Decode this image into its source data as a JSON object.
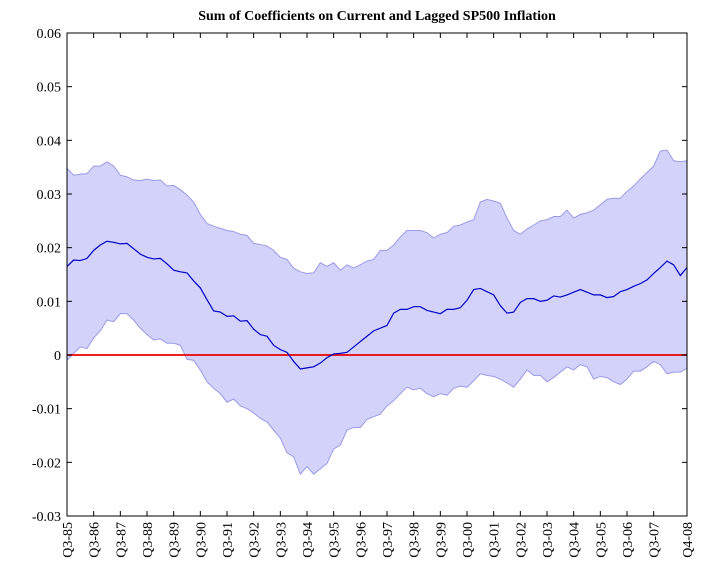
{
  "chart_data": {
    "type": "band-line",
    "title": "Sum of Coefficients on Current and Lagged SP500 Inflation",
    "categories": [
      "Q3-85",
      null,
      null,
      null,
      "Q3-86",
      null,
      null,
      null,
      "Q3-87",
      null,
      null,
      null,
      "Q3-88",
      null,
      null,
      null,
      "Q3-89",
      null,
      null,
      null,
      "Q3-90",
      null,
      null,
      null,
      "Q3-91",
      null,
      null,
      null,
      "Q3-92",
      null,
      null,
      null,
      "Q3-93",
      null,
      null,
      null,
      "Q3-94",
      null,
      null,
      null,
      "Q3-95",
      null,
      null,
      null,
      "Q3-96",
      null,
      null,
      null,
      "Q3-97",
      null,
      null,
      null,
      "Q3-98",
      null,
      null,
      null,
      "Q3-99",
      null,
      null,
      null,
      "Q3-00",
      null,
      null,
      null,
      "Q3-01",
      null,
      null,
      null,
      "Q3-02",
      null,
      null,
      null,
      "Q3-03",
      null,
      null,
      null,
      "Q3-04",
      null,
      null,
      null,
      "Q3-05",
      null,
      null,
      null,
      "Q3-06",
      null,
      null,
      null,
      "Q3-07",
      null,
      null,
      null,
      null,
      "Q4-08"
    ],
    "series": [
      {
        "color": "#0000c8",
        "values": [
          0.0165,
          0.0177,
          0.0176,
          0.018,
          0.0195,
          0.0205,
          0.0212,
          0.021,
          0.0207,
          0.0208,
          0.0198,
          0.0188,
          0.0182,
          0.0179,
          0.018,
          0.017,
          0.0158,
          0.0155,
          0.0153,
          0.0138,
          0.0125,
          0.0103,
          0.0082,
          0.008,
          0.0072,
          0.0073,
          0.0063,
          0.0064,
          0.0048,
          0.0038,
          0.0035,
          0.0018,
          0.001,
          0.0005,
          -0.0012,
          -0.0026,
          -0.0024,
          -0.0022,
          -0.0015,
          -0.0005,
          0.0002,
          0.0003,
          0.0005,
          0.0015,
          0.0025,
          0.0035,
          0.0045,
          0.005,
          0.0055,
          0.0078,
          0.0085,
          0.0085,
          0.009,
          0.009,
          0.0083,
          0.008,
          0.0077,
          0.0085,
          0.0085,
          0.0088,
          0.0102,
          0.0122,
          0.0124,
          0.0118,
          0.0112,
          0.0092,
          0.0078,
          0.008,
          0.0098,
          0.0105,
          0.0105,
          0.01,
          0.0102,
          0.011,
          0.0108,
          0.0112,
          0.0117,
          0.0122,
          0.0117,
          0.0112,
          0.0112,
          0.0107,
          0.0109,
          0.0118,
          0.0122,
          0.0128,
          0.0133,
          0.014,
          0.0152,
          0.0163,
          0.0175,
          0.0168,
          0.0148,
          0.0163
        ]
      }
    ],
    "band": {
      "color": "#d2d2fa",
      "edge_color": "#9a9ae8",
      "upper": [
        0.0348,
        0.0335,
        0.0337,
        0.0338,
        0.0352,
        0.0352,
        0.036,
        0.0352,
        0.0335,
        0.0332,
        0.0326,
        0.0325,
        0.0328,
        0.0325,
        0.0326,
        0.0315,
        0.0316,
        0.0308,
        0.0298,
        0.0285,
        0.0262,
        0.0245,
        0.024,
        0.0236,
        0.0232,
        0.023,
        0.0225,
        0.0223,
        0.0208,
        0.0206,
        0.0203,
        0.0195,
        0.0182,
        0.0178,
        0.0162,
        0.0155,
        0.0152,
        0.0153,
        0.0172,
        0.0165,
        0.0172,
        0.0158,
        0.0168,
        0.0162,
        0.0168,
        0.0175,
        0.0178,
        0.0195,
        0.0195,
        0.0205,
        0.022,
        0.0232,
        0.0232,
        0.0232,
        0.0228,
        0.0218,
        0.0225,
        0.0228,
        0.024,
        0.0242,
        0.0248,
        0.0252,
        0.0285,
        0.029,
        0.0287,
        0.0283,
        0.0255,
        0.0232,
        0.0225,
        0.0235,
        0.0242,
        0.025,
        0.0252,
        0.0258,
        0.0258,
        0.027,
        0.0255,
        0.0262,
        0.0265,
        0.027,
        0.028,
        0.029,
        0.0292,
        0.0292,
        0.0305,
        0.0315,
        0.0328,
        0.034,
        0.0352,
        0.038,
        0.0382,
        0.0362,
        0.036,
        0.0362
      ],
      "lower": [
        -0.001,
        0.0003,
        0.0015,
        0.0012,
        0.0032,
        0.0045,
        0.0065,
        0.0062,
        0.0077,
        0.0077,
        0.0065,
        0.005,
        0.0038,
        0.0028,
        0.003,
        0.0022,
        0.0022,
        0.0018,
        -0.0008,
        -0.001,
        -0.0028,
        -0.005,
        -0.0062,
        -0.0072,
        -0.0088,
        -0.0082,
        -0.0095,
        -0.01,
        -0.0108,
        -0.0118,
        -0.0125,
        -0.014,
        -0.0155,
        -0.0182,
        -0.019,
        -0.0222,
        -0.0208,
        -0.0222,
        -0.0212,
        -0.0202,
        -0.0175,
        -0.0168,
        -0.014,
        -0.0135,
        -0.0135,
        -0.012,
        -0.0115,
        -0.011,
        -0.0095,
        -0.0085,
        -0.0072,
        -0.006,
        -0.0065,
        -0.0062,
        -0.0072,
        -0.0078,
        -0.0072,
        -0.0075,
        -0.0062,
        -0.0058,
        -0.006,
        -0.0048,
        -0.0035,
        -0.0038,
        -0.004,
        -0.0045,
        -0.0052,
        -0.006,
        -0.0045,
        -0.0028,
        -0.0038,
        -0.0038,
        -0.005,
        -0.0042,
        -0.0032,
        -0.0022,
        -0.0028,
        -0.0018,
        -0.0022,
        -0.0045,
        -0.004,
        -0.0042,
        -0.005,
        -0.0055,
        -0.0045,
        -0.003,
        -0.003,
        -0.0022,
        -0.0012,
        -0.0018,
        -0.0035,
        -0.0032,
        -0.0032,
        -0.0025
      ]
    },
    "reference_line": {
      "y": 0,
      "color": "#ee0000"
    },
    "ylim": [
      -0.03,
      0.06
    ],
    "yticks": [
      -0.03,
      -0.02,
      -0.01,
      0,
      0.01,
      0.02,
      0.03,
      0.04,
      0.05,
      0.06
    ]
  }
}
